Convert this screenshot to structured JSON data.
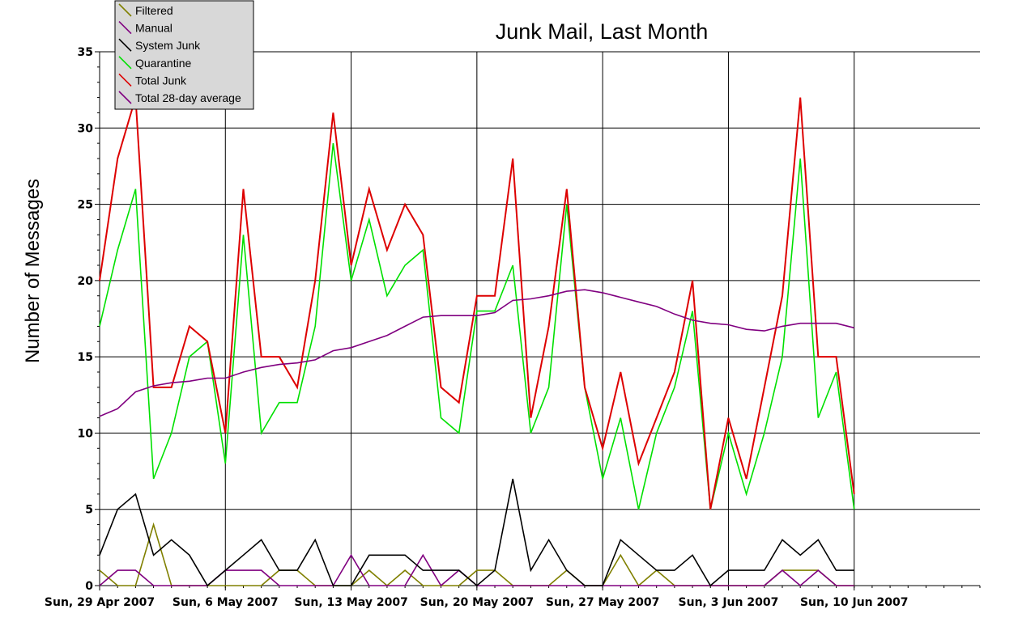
{
  "chart_data": {
    "type": "line",
    "title": "Junk Mail, Last Month",
    "xlabel": "",
    "ylabel": "Number of Messages",
    "ylim": [
      0,
      35
    ],
    "yticks": [
      0,
      5,
      10,
      15,
      20,
      25,
      30,
      35
    ],
    "xlim": [
      "2007-04-29",
      "2007-06-17"
    ],
    "xtick_labels": [
      {
        "date": "2007-04-29",
        "label": "Sun, 29 Apr 2007"
      },
      {
        "date": "2007-05-06",
        "label": "Sun, 6 May 2007"
      },
      {
        "date": "2007-05-13",
        "label": "Sun, 13 May 2007"
      },
      {
        "date": "2007-05-20",
        "label": "Sun, 20 May 2007"
      },
      {
        "date": "2007-05-27",
        "label": "Sun, 27 May 2007"
      },
      {
        "date": "2007-06-03",
        "label": "Sun, 3 Jun 2007"
      },
      {
        "date": "2007-06-10",
        "label": "Sun, 10 Jun 2007"
      }
    ],
    "grid": true,
    "legend_position": "top-left",
    "x": [
      "2007-04-29",
      "2007-04-30",
      "2007-05-01",
      "2007-05-02",
      "2007-05-03",
      "2007-05-04",
      "2007-05-05",
      "2007-05-06",
      "2007-05-07",
      "2007-05-08",
      "2007-05-09",
      "2007-05-10",
      "2007-05-11",
      "2007-05-12",
      "2007-05-13",
      "2007-05-14",
      "2007-05-15",
      "2007-05-16",
      "2007-05-17",
      "2007-05-18",
      "2007-05-19",
      "2007-05-20",
      "2007-05-21",
      "2007-05-22",
      "2007-05-23",
      "2007-05-24",
      "2007-05-25",
      "2007-05-26",
      "2007-05-27",
      "2007-05-28",
      "2007-05-29",
      "2007-05-30",
      "2007-05-31",
      "2007-06-01",
      "2007-06-02",
      "2007-06-03",
      "2007-06-04",
      "2007-06-05",
      "2007-06-06",
      "2007-06-07",
      "2007-06-08",
      "2007-06-09",
      "2007-06-10"
    ],
    "series": [
      {
        "name": "Filtered",
        "color": "#808000",
        "values": [
          1,
          0,
          0,
          4,
          0,
          0,
          0,
          0,
          0,
          0,
          1,
          1,
          0,
          0,
          0,
          1,
          0,
          1,
          0,
          0,
          0,
          1,
          1,
          0,
          0,
          0,
          1,
          0,
          0,
          2,
          0,
          1,
          0,
          0,
          0,
          0,
          0,
          0,
          1,
          1,
          1,
          0,
          0
        ]
      },
      {
        "name": "Manual",
        "color": "#800080",
        "values": [
          0,
          1,
          1,
          0,
          0,
          0,
          0,
          1,
          1,
          1,
          0,
          0,
          0,
          0,
          2,
          0,
          0,
          0,
          2,
          0,
          1,
          0,
          0,
          0,
          0,
          0,
          0,
          0,
          0,
          0,
          0,
          0,
          0,
          0,
          0,
          0,
          0,
          0,
          1,
          0,
          1,
          0,
          0
        ]
      },
      {
        "name": "System Junk",
        "color": "#000000",
        "values": [
          2,
          5,
          6,
          2,
          3,
          2,
          0,
          1,
          2,
          3,
          1,
          1,
          3,
          0,
          0,
          2,
          2,
          2,
          1,
          1,
          1,
          0,
          1,
          7,
          1,
          3,
          1,
          0,
          0,
          3,
          2,
          1,
          1,
          2,
          0,
          1,
          1,
          1,
          3,
          2,
          3,
          1,
          1
        ]
      },
      {
        "name": "Quarantine",
        "color": "#00e000",
        "values": [
          17,
          22,
          26,
          7,
          10,
          15,
          16,
          8,
          23,
          10,
          12,
          12,
          17,
          29,
          20,
          24,
          19,
          21,
          22,
          11,
          10,
          18,
          18,
          21,
          10,
          13,
          25,
          13,
          7,
          11,
          5,
          10,
          13,
          18,
          5,
          10,
          6,
          10,
          15,
          28,
          11,
          14,
          5
        ]
      },
      {
        "name": "Total Junk",
        "color": "#dd0000",
        "values": [
          20,
          28,
          32,
          13,
          13,
          17,
          16,
          10,
          26,
          15,
          15,
          13,
          20,
          31,
          21,
          26,
          22,
          25,
          23,
          13,
          12,
          19,
          19,
          28,
          11,
          17,
          26,
          13,
          9,
          14,
          8,
          11,
          14,
          20,
          5,
          11,
          7,
          13,
          19,
          32,
          15,
          15,
          6
        ]
      },
      {
        "name": "Total 28-day average",
        "color": "#800080",
        "values": [
          11.1,
          11.6,
          12.7,
          13.1,
          13.3,
          13.4,
          13.6,
          13.6,
          14.0,
          14.3,
          14.5,
          14.6,
          14.8,
          15.4,
          15.6,
          16.0,
          16.4,
          17.0,
          17.6,
          17.7,
          17.7,
          17.7,
          17.9,
          18.7,
          18.8,
          19.0,
          19.3,
          19.4,
          19.2,
          18.9,
          18.6,
          18.3,
          17.8,
          17.4,
          17.2,
          17.1,
          16.8,
          16.7,
          17.0,
          17.2,
          17.2,
          17.2,
          16.9
        ]
      }
    ]
  }
}
